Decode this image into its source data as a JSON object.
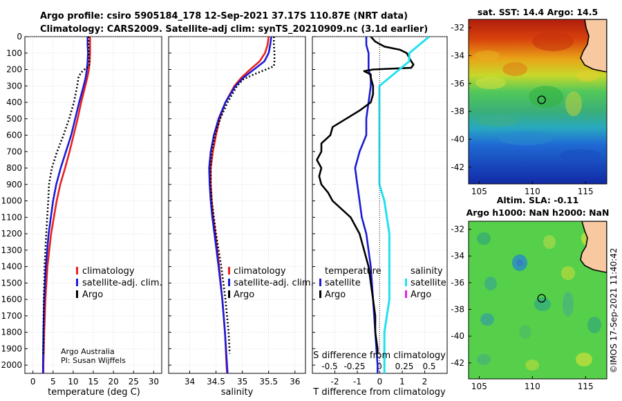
{
  "header": {
    "line1": "Argo profile: csiro 5905184_178 12-Sep-2021 37.17S 110.87E (NRT data)",
    "line2": "Climatology: CARS2009. Satellite-adj clim: synTS_20210909.nc (3.1d earlier)"
  },
  "credit": {
    "line1": "Argo Australia",
    "line2": "PI: Susan Wijffels",
    "imos": "©IMOS 17-Sep-2021 11:40:42"
  },
  "colors": {
    "climatology": "#e82020",
    "satellite": "#1a1ad6",
    "argo": "#000000",
    "sat_salinity": "#22e0ee",
    "argo_salinity": "#e020e0"
  },
  "depth_axis": {
    "ticks": [
      0,
      100,
      200,
      300,
      400,
      500,
      600,
      700,
      800,
      900,
      1000,
      1100,
      1200,
      1300,
      1400,
      1500,
      1600,
      1700,
      1800,
      1900,
      2000
    ],
    "tick_labels": [
      "0",
      "100",
      "200",
      "300",
      "400",
      "500",
      "600",
      "700",
      "800",
      "900",
      "1000",
      "1100",
      "1200",
      "1300",
      "1400",
      "1500",
      "1600",
      "1700",
      "1800",
      "1900",
      "2000"
    ],
    "range": [
      0,
      2050
    ]
  },
  "chart_data": [
    {
      "type": "line",
      "id": "temperature",
      "xlabel": "temperature (deg C)",
      "xlim": [
        -2,
        32
      ],
      "xticks": [
        0,
        5,
        10,
        15,
        20,
        25,
        30
      ],
      "xtick_labels": [
        "0",
        "5",
        "10",
        "15",
        "20",
        "25",
        "30"
      ],
      "legend": [
        "climatology",
        "satellite-adj. clim.",
        "Argo"
      ],
      "series": [
        {
          "name": "climatology",
          "style": "solid",
          "depth": [
            0,
            50,
            100,
            150,
            200,
            250,
            300,
            400,
            500,
            600,
            700,
            800,
            900,
            1000,
            1200,
            1400,
            1600,
            1800,
            2000,
            2050
          ],
          "values": [
            14.2,
            14.2,
            14.2,
            14.1,
            13.9,
            13.5,
            13.0,
            12.0,
            11.1,
            10.1,
            9.1,
            8.0,
            6.8,
            5.9,
            4.5,
            3.6,
            3.1,
            2.8,
            2.6,
            2.6
          ]
        },
        {
          "name": "satellite",
          "style": "solid",
          "depth": [
            0,
            50,
            100,
            150,
            200,
            250,
            300,
            400,
            500,
            600,
            700,
            800,
            900,
            1000,
            1200,
            1400,
            1600,
            1800,
            2000,
            2050
          ],
          "values": [
            13.6,
            13.6,
            13.7,
            13.6,
            13.4,
            13.1,
            12.6,
            11.5,
            10.5,
            9.5,
            8.2,
            6.9,
            5.8,
            5.0,
            3.9,
            3.2,
            2.8,
            2.6,
            2.5,
            2.5
          ]
        },
        {
          "name": "Argo",
          "style": "dotted",
          "depth": [
            0,
            50,
            100,
            150,
            180,
            200,
            220,
            250,
            300,
            400,
            500,
            600,
            700,
            800,
            900,
            1000,
            1200,
            1400,
            1600,
            1800,
            1930
          ],
          "values": [
            13.8,
            13.8,
            13.9,
            14.0,
            14.0,
            12.8,
            11.9,
            11.3,
            11.0,
            10.2,
            9.0,
            7.6,
            6.0,
            4.7,
            4.0,
            3.8,
            3.3,
            2.9,
            2.7,
            2.6,
            2.6
          ]
        }
      ]
    },
    {
      "type": "line",
      "id": "salinity",
      "xlabel": "salinity",
      "xlim": [
        33.6,
        36.2
      ],
      "xticks": [
        34,
        34.5,
        35,
        35.5,
        36
      ],
      "xtick_labels": [
        "34",
        "34.5",
        "35",
        "35.5",
        "36"
      ],
      "legend": [
        "climatology",
        "satellite-adj. clim.",
        "Argo"
      ],
      "series": [
        {
          "name": "climatology",
          "style": "solid",
          "depth": [
            0,
            50,
            100,
            150,
            200,
            250,
            300,
            400,
            500,
            600,
            700,
            800,
            900,
            1000,
            1100,
            1200,
            1400,
            1600,
            1800,
            2000,
            2050
          ],
          "values": [
            35.5,
            35.48,
            35.43,
            35.33,
            35.15,
            34.98,
            34.85,
            34.68,
            34.57,
            34.5,
            34.44,
            34.4,
            34.4,
            34.42,
            34.45,
            34.49,
            34.56,
            34.62,
            34.67,
            34.7,
            34.71
          ]
        },
        {
          "name": "satellite",
          "style": "solid",
          "depth": [
            0,
            50,
            100,
            150,
            200,
            250,
            300,
            400,
            500,
            600,
            700,
            800,
            900,
            1000,
            1100,
            1200,
            1400,
            1600,
            1800,
            2000,
            2050
          ],
          "values": [
            35.55,
            35.53,
            35.5,
            35.42,
            35.22,
            35.02,
            34.87,
            34.68,
            34.55,
            34.46,
            34.4,
            34.37,
            34.38,
            34.4,
            34.43,
            34.47,
            34.55,
            34.62,
            34.67,
            34.71,
            34.72
          ]
        },
        {
          "name": "Argo",
          "style": "dotted",
          "depth": [
            0,
            50,
            100,
            150,
            180,
            200,
            230,
            260,
            300,
            400,
            500,
            600,
            700,
            800,
            900,
            1000,
            1200,
            1400,
            1600,
            1800,
            1930
          ],
          "values": [
            35.6,
            35.6,
            35.61,
            35.61,
            35.6,
            35.45,
            35.22,
            35.02,
            34.9,
            34.72,
            34.58,
            34.48,
            34.42,
            34.4,
            34.4,
            34.42,
            34.5,
            34.6,
            34.68,
            34.74,
            34.76
          ]
        }
      ]
    },
    {
      "type": "line",
      "id": "difference",
      "xlabel": "T difference from climatology",
      "x2label": "S difference from climatology",
      "xlim": [
        -3,
        3
      ],
      "xticks": [
        -2,
        -1,
        0,
        1,
        2
      ],
      "xtick_labels": [
        "-2",
        "-1",
        "0",
        "1",
        "2"
      ],
      "x2ticks": [
        -0.5,
        -0.25,
        0,
        0.25,
        0.5
      ],
      "x2tick_labels": [
        "-0.5",
        "-0.25",
        "0",
        "0.25",
        "0.5"
      ],
      "legend_temperature_title": "temperature",
      "legend_salinity_title": "salinity",
      "legend": [
        "satellite",
        "Argo"
      ],
      "series": [
        {
          "name": "T satellite",
          "style": "solid",
          "color": "satellite",
          "depth": [
            0,
            50,
            100,
            150,
            200,
            250,
            300,
            400,
            500,
            600,
            700,
            800,
            900,
            1000,
            1100,
            1200,
            1400,
            1600,
            1800,
            2000,
            2050
          ],
          "values": [
            -0.6,
            -0.6,
            -0.5,
            -0.5,
            -0.5,
            -0.4,
            -0.4,
            -0.5,
            -0.6,
            -0.6,
            -0.9,
            -1.1,
            -1.0,
            -0.9,
            -0.8,
            -0.6,
            -0.4,
            -0.3,
            -0.2,
            -0.1,
            -0.1
          ]
        },
        {
          "name": "T Argo",
          "style": "solid",
          "color": "argo",
          "depth": [
            0,
            30,
            60,
            80,
            100,
            150,
            170,
            190,
            200,
            210,
            230,
            250,
            300,
            350,
            400,
            450,
            500,
            550,
            600,
            650,
            700,
            750,
            800,
            850,
            900,
            950,
            1000,
            1100,
            1200,
            1300,
            1400,
            1500,
            1600,
            1700,
            1800,
            1900,
            1930
          ],
          "values": [
            -0.4,
            -0.2,
            0.2,
            0.9,
            1.2,
            1.4,
            1.5,
            1.4,
            -0.3,
            -0.7,
            -0.4,
            -0.4,
            -0.3,
            -0.3,
            -0.4,
            -0.9,
            -1.5,
            -2.1,
            -2.2,
            -2.6,
            -2.6,
            -2.8,
            -2.6,
            -2.7,
            -2.6,
            -2.3,
            -2.1,
            -1.3,
            -0.9,
            -0.7,
            -0.5,
            -0.4,
            -0.3,
            -0.2,
            -0.2,
            -0.1,
            -0.1
          ]
        },
        {
          "name": "S satellite",
          "style": "solid",
          "color": "sat_salinity",
          "depth": [
            0,
            50,
            100,
            150,
            200,
            250,
            300,
            400,
            500,
            600,
            700,
            800,
            900,
            1000,
            1200,
            1400,
            1600,
            1800,
            2000,
            2050
          ],
          "values": [
            0.5,
            0.4,
            0.3,
            0.3,
            0.2,
            0.1,
            0.0,
            0.0,
            0.0,
            0.0,
            0.0,
            0.0,
            0.0,
            0.05,
            0.1,
            0.1,
            0.1,
            0.05,
            0.05,
            0.05
          ]
        },
        {
          "name": "S Argo",
          "style": "dotted",
          "color": "argo",
          "depth": [
            0,
            100,
            200,
            300,
            400,
            600,
            800,
            1000,
            1200,
            1400,
            1600,
            1800,
            2000,
            2050
          ],
          "values": [
            0,
            0,
            0,
            0,
            0,
            0,
            0,
            0,
            0,
            0,
            0,
            0,
            0,
            0
          ]
        }
      ]
    }
  ],
  "sst_map": {
    "title": "sat. SST: 14.4  Argo: 14.5",
    "yticks": [
      -32,
      -34,
      -36,
      -38,
      -40,
      -42
    ],
    "ytick_labels": [
      "-32",
      "-34",
      "-36",
      "-38",
      "-40",
      "-42"
    ],
    "xticks": [
      105,
      110,
      115
    ],
    "xtick_labels": [
      "105",
      "110",
      "115"
    ],
    "lon_range": [
      104,
      117
    ],
    "lat_range": [
      -43.2,
      -31.4
    ],
    "float_lon": 110.87,
    "float_lat": -37.17
  },
  "sla_map": {
    "title1": "Altim. SLA: -0.11",
    "title2": "Argo h1000: NaN  h2000: NaN",
    "yticks": [
      -32,
      -34,
      -36,
      -38,
      -40,
      -42
    ],
    "ytick_labels": [
      "-32",
      "-34",
      "-36",
      "-38",
      "-40",
      "-42"
    ],
    "xticks": [
      105,
      110,
      115
    ],
    "xtick_labels": [
      "105",
      "110",
      "115"
    ],
    "lon_range": [
      104,
      117
    ],
    "lat_range": [
      -43.2,
      -31.4
    ],
    "float_lon": 110.87,
    "float_lat": -37.17
  }
}
